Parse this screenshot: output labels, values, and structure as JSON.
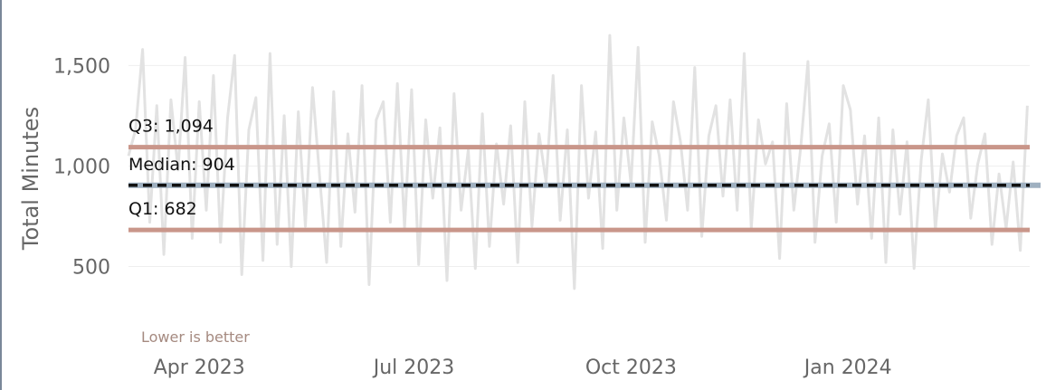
{
  "chart_data": {
    "type": "line",
    "title": "",
    "xlabel": "",
    "ylabel": "Total Minutes",
    "ylim": [
      250,
      1700
    ],
    "xlim": [
      "2023-03-02",
      "2024-03-18"
    ],
    "x_ticks": [
      {
        "date": "2023-04-01",
        "label": "Apr 2023"
      },
      {
        "date": "2023-07-01",
        "label": "Jul 2023"
      },
      {
        "date": "2023-10-01",
        "label": "Oct 2023"
      },
      {
        "date": "2024-01-01",
        "label": "Jan 2024"
      }
    ],
    "y_ticks": [
      {
        "value": 500,
        "label": "500"
      },
      {
        "value": 1000,
        "label": "1,000"
      },
      {
        "value": 1500,
        "label": "1,500"
      }
    ],
    "grid": true,
    "series": [
      {
        "color": "#e2e2e2",
        "x": [
          "2023-03-02",
          "2023-03-05",
          "2023-03-08",
          "2023-03-11",
          "2023-03-14",
          "2023-03-17",
          "2023-03-20",
          "2023-03-23",
          "2023-03-26",
          "2023-03-29",
          "2023-04-01",
          "2023-04-04",
          "2023-04-07",
          "2023-04-10",
          "2023-04-13",
          "2023-04-16",
          "2023-04-19",
          "2023-04-22",
          "2023-04-25",
          "2023-04-28",
          "2023-05-01",
          "2023-05-04",
          "2023-05-07",
          "2023-05-10",
          "2023-05-13",
          "2023-05-16",
          "2023-05-19",
          "2023-05-22",
          "2023-05-25",
          "2023-05-28",
          "2023-05-31",
          "2023-06-03",
          "2023-06-06",
          "2023-06-09",
          "2023-06-12",
          "2023-06-15",
          "2023-06-18",
          "2023-06-21",
          "2023-06-24",
          "2023-06-27",
          "2023-06-30",
          "2023-07-03",
          "2023-07-06",
          "2023-07-09",
          "2023-07-12",
          "2023-07-15",
          "2023-07-18",
          "2023-07-21",
          "2023-07-24",
          "2023-07-27",
          "2023-07-30",
          "2023-08-02",
          "2023-08-05",
          "2023-08-08",
          "2023-08-11",
          "2023-08-14",
          "2023-08-17",
          "2023-08-20",
          "2023-08-23",
          "2023-08-26",
          "2023-08-29",
          "2023-09-01",
          "2023-09-04",
          "2023-09-07",
          "2023-09-10",
          "2023-09-13",
          "2023-09-16",
          "2023-09-19",
          "2023-09-22",
          "2023-09-25",
          "2023-09-28",
          "2023-10-01",
          "2023-10-04",
          "2023-10-07",
          "2023-10-10",
          "2023-10-13",
          "2023-10-16",
          "2023-10-19",
          "2023-10-22",
          "2023-10-25",
          "2023-10-28",
          "2023-10-31",
          "2023-11-03",
          "2023-11-06",
          "2023-11-09",
          "2023-11-12",
          "2023-11-15",
          "2023-11-18",
          "2023-11-21",
          "2023-11-24",
          "2023-11-27",
          "2023-11-30",
          "2023-12-03",
          "2023-12-06",
          "2023-12-09",
          "2023-12-12",
          "2023-12-15",
          "2023-12-18",
          "2023-12-21",
          "2023-12-24",
          "2023-12-27",
          "2023-12-30",
          "2024-01-02",
          "2024-01-05",
          "2024-01-08",
          "2024-01-11",
          "2024-01-14",
          "2024-01-17",
          "2024-01-20",
          "2024-01-23",
          "2024-01-26",
          "2024-01-29",
          "2024-02-01",
          "2024-02-04",
          "2024-02-07",
          "2024-02-10",
          "2024-02-13",
          "2024-02-16",
          "2024-02-19",
          "2024-02-22",
          "2024-02-25",
          "2024-02-28",
          "2024-03-02",
          "2024-03-05",
          "2024-03-08",
          "2024-03-11",
          "2024-03-14",
          "2024-03-17"
        ],
        "values": [
          1050,
          1180,
          1580,
          720,
          1300,
          560,
          1330,
          980,
          1540,
          640,
          1320,
          780,
          1450,
          620,
          1240,
          1550,
          460,
          1180,
          1340,
          530,
          1560,
          610,
          1250,
          500,
          1270,
          700,
          1390,
          950,
          520,
          1370,
          600,
          1160,
          770,
          1400,
          410,
          1230,
          1320,
          720,
          1410,
          690,
          1380,
          510,
          1230,
          840,
          1190,
          430,
          1360,
          780,
          1080,
          490,
          1260,
          600,
          1110,
          810,
          1200,
          520,
          1320,
          700,
          1160,
          920,
          1450,
          730,
          1180,
          390,
          1400,
          840,
          1170,
          590,
          1650,
          780,
          1240,
          910,
          1590,
          620,
          1220,
          1050,
          730,
          1320,
          1120,
          780,
          1490,
          650,
          1150,
          1300,
          850,
          1330,
          780,
          1560,
          690,
          1230,
          1010,
          1120,
          540,
          1310,
          780,
          1100,
          1520,
          620,
          1050,
          1210,
          720,
          1400,
          1280,
          810,
          1150,
          640,
          1240,
          520,
          1180,
          760,
          1120,
          490,
          1030,
          1330,
          680,
          1060,
          870,
          1150,
          1240,
          740,
          1010,
          1160,
          610,
          960,
          690,
          1020,
          580,
          1300
        ]
      }
    ],
    "reference_lines": [
      {
        "label": "Q3: 1,094",
        "value": 1094,
        "color": "#c9968a",
        "style": "solid"
      },
      {
        "label": "Median: 904",
        "value": 904,
        "color": "#111111",
        "style": "dashed",
        "underlay_color": "#9fb0c0"
      },
      {
        "label": "Q1: 682",
        "value": 682,
        "color": "#c9968a",
        "style": "solid"
      }
    ],
    "annotations": [
      {
        "text": "Lower is better",
        "color": "#a58a80"
      }
    ]
  }
}
